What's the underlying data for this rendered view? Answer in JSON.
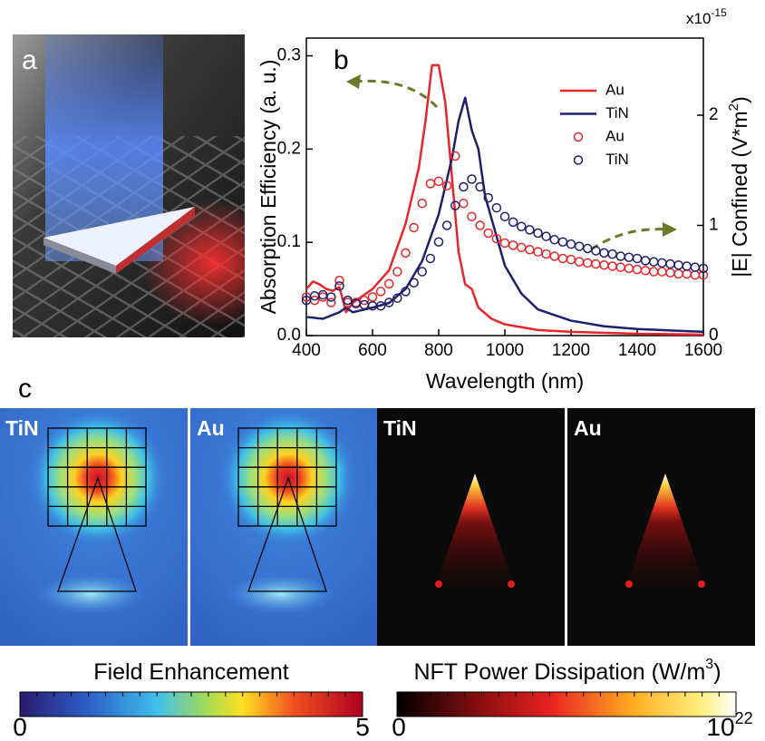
{
  "panel_labels": [
    "a",
    "b",
    "c"
  ],
  "chart_data": {
    "type": "line",
    "xlabel": "Wavelength (nm)",
    "ylabel": "Absorption Efficiency (a. u.)",
    "y2label": [
      "|E| Confined (V*m",
      "2",
      ")"
    ],
    "y2_multiplier": [
      "x10",
      "-15"
    ],
    "xlim": [
      400,
      1600
    ],
    "xticks": [
      400,
      600,
      800,
      1000,
      1200,
      1400,
      1600
    ],
    "ylim": [
      0,
      0.319
    ],
    "yticks": [
      {
        "value": 0,
        "label": "0.0"
      },
      0.1,
      0.2,
      0.3
    ],
    "y2lim": [
      0,
      2.7
    ],
    "y2ticks": [
      0,
      1,
      2
    ],
    "series": [
      {
        "name": "Au",
        "color": "#e8262a",
        "mode": "line",
        "x": [
          400,
          420,
          440,
          460,
          480,
          500,
          520,
          540,
          600,
          650,
          700,
          740,
          760,
          780,
          800,
          820,
          840,
          860,
          880,
          900,
          920,
          960,
          1000,
          1100,
          1200,
          1400,
          1600
        ],
        "values": [
          0.05,
          0.058,
          0.055,
          0.05,
          0.048,
          0.052,
          0.025,
          0.035,
          0.05,
          0.07,
          0.12,
          0.18,
          0.23,
          0.29,
          0.29,
          0.25,
          0.17,
          0.09,
          0.055,
          0.05,
          0.03,
          0.018,
          0.012,
          0.006,
          0.004,
          0.002,
          0.001
        ]
      },
      {
        "name": "TiN",
        "color": "#1f1f6e",
        "mode": "line",
        "x": [
          400,
          450,
          500,
          520,
          540,
          600,
          650,
          700,
          750,
          800,
          840,
          860,
          880,
          900,
          920,
          940,
          980,
          1000,
          1050,
          1100,
          1200,
          1300,
          1400,
          1600
        ],
        "values": [
          0.02,
          0.018,
          0.025,
          0.03,
          0.025,
          0.03,
          0.035,
          0.05,
          0.08,
          0.13,
          0.19,
          0.23,
          0.255,
          0.22,
          0.2,
          0.15,
          0.1,
          0.075,
          0.045,
          0.028,
          0.016,
          0.01,
          0.007,
          0.004
        ]
      },
      {
        "name": "Au",
        "color": "#e8262a",
        "mode": "markers",
        "axis": "y2",
        "x": [
          400,
          425,
          450,
          475,
          500,
          525,
          550,
          575,
          600,
          625,
          650,
          675,
          700,
          725,
          750,
          775,
          800,
          825,
          850,
          875,
          900,
          925,
          950,
          975,
          1000,
          1025,
          1050,
          1075,
          1100,
          1125,
          1150,
          1175,
          1200,
          1225,
          1250,
          1275,
          1300,
          1325,
          1350,
          1375,
          1400,
          1425,
          1450,
          1475,
          1500,
          1525,
          1550,
          1575,
          1600
        ],
        "values": [
          0.35,
          0.32,
          0.35,
          0.3,
          0.5,
          0.3,
          0.3,
          0.32,
          0.35,
          0.4,
          0.47,
          0.58,
          0.75,
          0.98,
          1.2,
          1.38,
          1.4,
          1.36,
          1.63,
          1.2,
          1.08,
          1.0,
          0.93,
          0.88,
          0.84,
          0.82,
          0.8,
          0.78,
          0.76,
          0.74,
          0.72,
          0.7,
          0.69,
          0.67,
          0.66,
          0.65,
          0.64,
          0.63,
          0.62,
          0.61,
          0.6,
          0.59,
          0.58,
          0.58,
          0.57,
          0.56,
          0.56,
          0.55,
          0.55
        ]
      },
      {
        "name": "TiN",
        "color": "#1f1f6e",
        "mode": "markers",
        "axis": "y2",
        "x": [
          400,
          425,
          450,
          475,
          500,
          525,
          550,
          575,
          600,
          625,
          650,
          675,
          700,
          725,
          750,
          775,
          800,
          825,
          850,
          875,
          900,
          925,
          950,
          975,
          1000,
          1025,
          1050,
          1075,
          1100,
          1125,
          1150,
          1175,
          1200,
          1225,
          1250,
          1275,
          1300,
          1325,
          1350,
          1375,
          1400,
          1425,
          1450,
          1475,
          1500,
          1525,
          1550,
          1575,
          1600
        ],
        "values": [
          0.32,
          0.36,
          0.37,
          0.35,
          0.45,
          0.32,
          0.29,
          0.28,
          0.27,
          0.27,
          0.3,
          0.34,
          0.4,
          0.48,
          0.58,
          0.7,
          0.85,
          1.0,
          1.18,
          1.35,
          1.42,
          1.35,
          1.25,
          1.16,
          1.08,
          1.03,
          0.99,
          0.96,
          0.93,
          0.9,
          0.87,
          0.85,
          0.83,
          0.81,
          0.79,
          0.77,
          0.75,
          0.74,
          0.72,
          0.71,
          0.7,
          0.68,
          0.67,
          0.66,
          0.65,
          0.64,
          0.63,
          0.62,
          0.61
        ]
      }
    ]
  },
  "panel_c": {
    "images": [
      {
        "label": "TiN"
      },
      {
        "label": "Au"
      },
      {
        "label": "TiN"
      },
      {
        "label": "Au"
      }
    ],
    "colorbars": [
      {
        "title": [
          "Field Enhancement"
        ],
        "min": [
          "0"
        ],
        "max": [
          "5"
        ]
      },
      {
        "title": [
          "NFT Power Dissipation (W/m",
          "3",
          ")"
        ],
        "min": [
          "0"
        ],
        "max": [
          "10",
          "22"
        ]
      }
    ]
  }
}
